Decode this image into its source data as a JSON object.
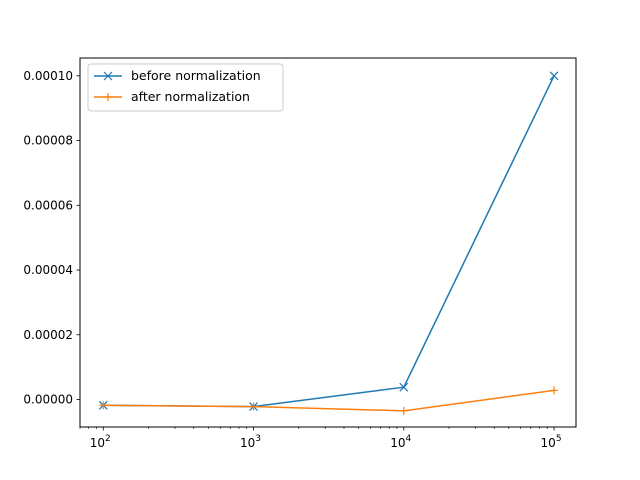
{
  "chart_data": {
    "type": "line",
    "title": "",
    "xlabel": "",
    "ylabel": "",
    "xscale": "log",
    "x": [
      100,
      1000,
      10000,
      100000
    ],
    "xlim": [
      70,
      140000
    ],
    "ylim": [
      -8.5e-06,
      0.0001055
    ],
    "x_ticks": [
      100,
      1000,
      10000,
      100000
    ],
    "x_tick_labels": [
      {
        "base": "10",
        "exp": "2"
      },
      {
        "base": "10",
        "exp": "3"
      },
      {
        "base": "10",
        "exp": "4"
      },
      {
        "base": "10",
        "exp": "5"
      }
    ],
    "y_ticks": [
      0,
      2e-05,
      4e-05,
      6e-05,
      8e-05,
      0.0001
    ],
    "y_tick_labels": [
      "0.00000",
      "0.00002",
      "0.00004",
      "0.00006",
      "0.00008",
      "0.00010"
    ],
    "grid": false,
    "legend_position": "upper-left",
    "series": [
      {
        "name": "before normalization",
        "color": "#1f77b4",
        "marker": "x",
        "values": [
          -1.8e-06,
          -2.2e-06,
          3.8e-06,
          0.0001
        ]
      },
      {
        "name": "after normalization",
        "color": "#ff7f0e",
        "marker": "plus",
        "values": [
          -1.8e-06,
          -2.2e-06,
          -3.5e-06,
          2.8e-06
        ]
      }
    ]
  }
}
